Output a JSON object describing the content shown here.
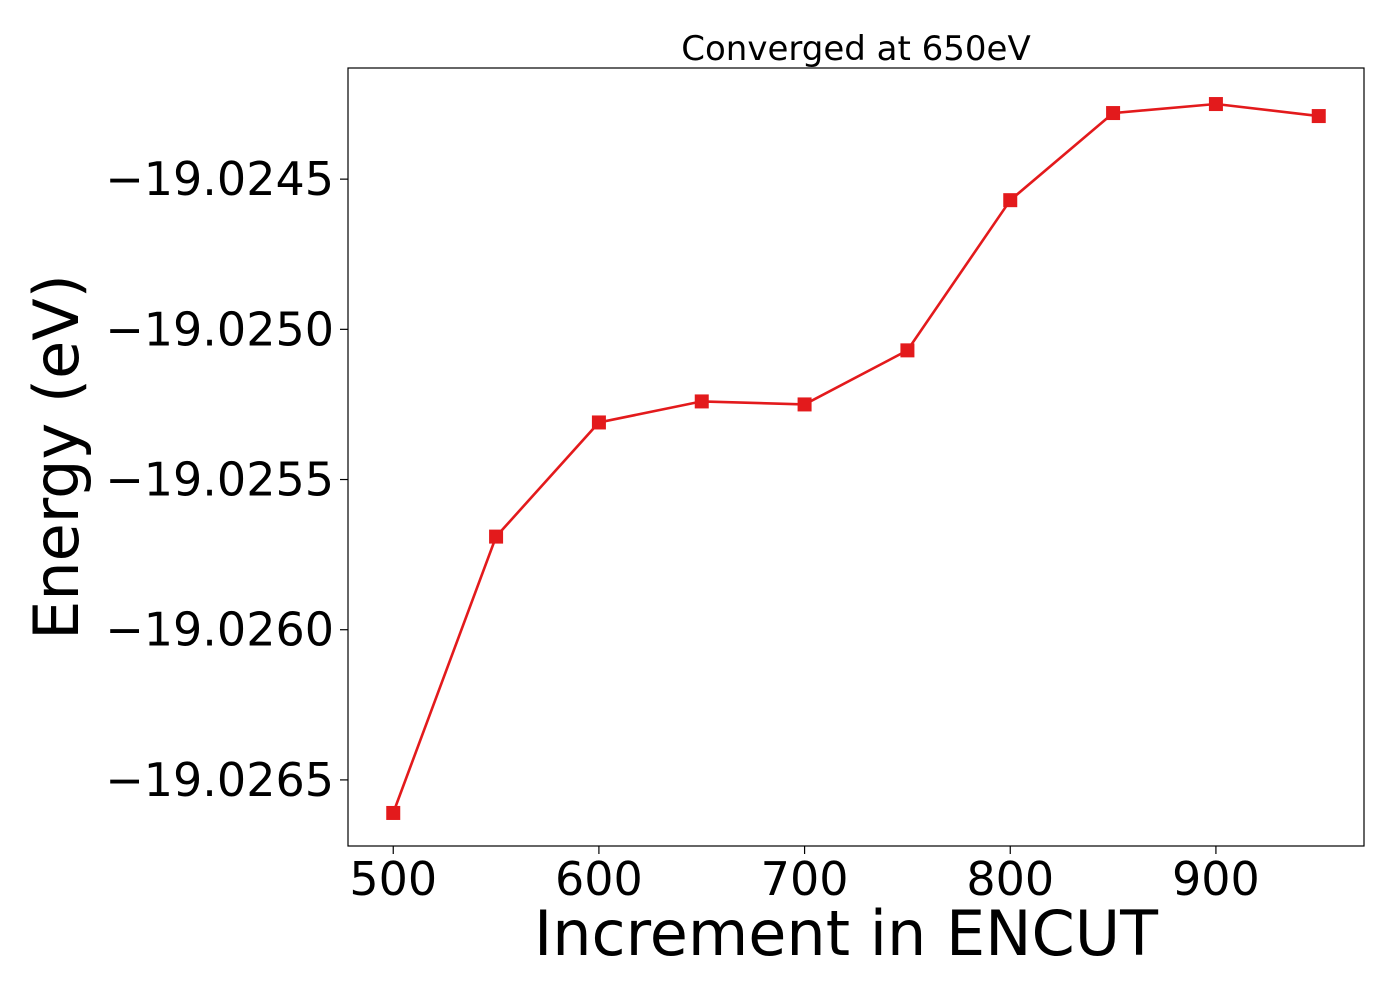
{
  "chart_data": {
    "type": "line",
    "title": "Converged at 650eV",
    "xlabel": "Increment in ENCUT",
    "ylabel": "Energy (eV)",
    "xlim": [
      478,
      972
    ],
    "ylim": [
      -19.02672,
      -19.02413
    ],
    "xticks": [
      500,
      600,
      700,
      800,
      900
    ],
    "xtick_labels": [
      "500",
      "600",
      "700",
      "800",
      "900"
    ],
    "yticks": [
      -19.0245,
      -19.025,
      -19.0255,
      -19.026,
      -19.0265
    ],
    "ytick_labels": [
      "−19.0245",
      "−19.0250",
      "−19.0255",
      "−19.0260",
      "−19.0265"
    ],
    "grid": false,
    "series": [
      {
        "color": "#e31a1c",
        "marker": "square",
        "x": [
          500,
          550,
          600,
          650,
          700,
          750,
          800,
          850,
          900,
          950
        ],
        "y": [
          -19.02661,
          -19.02569,
          -19.02531,
          -19.02524,
          -19.02525,
          -19.02507,
          -19.02457,
          -19.02428,
          -19.02425,
          -19.02429
        ]
      }
    ]
  }
}
